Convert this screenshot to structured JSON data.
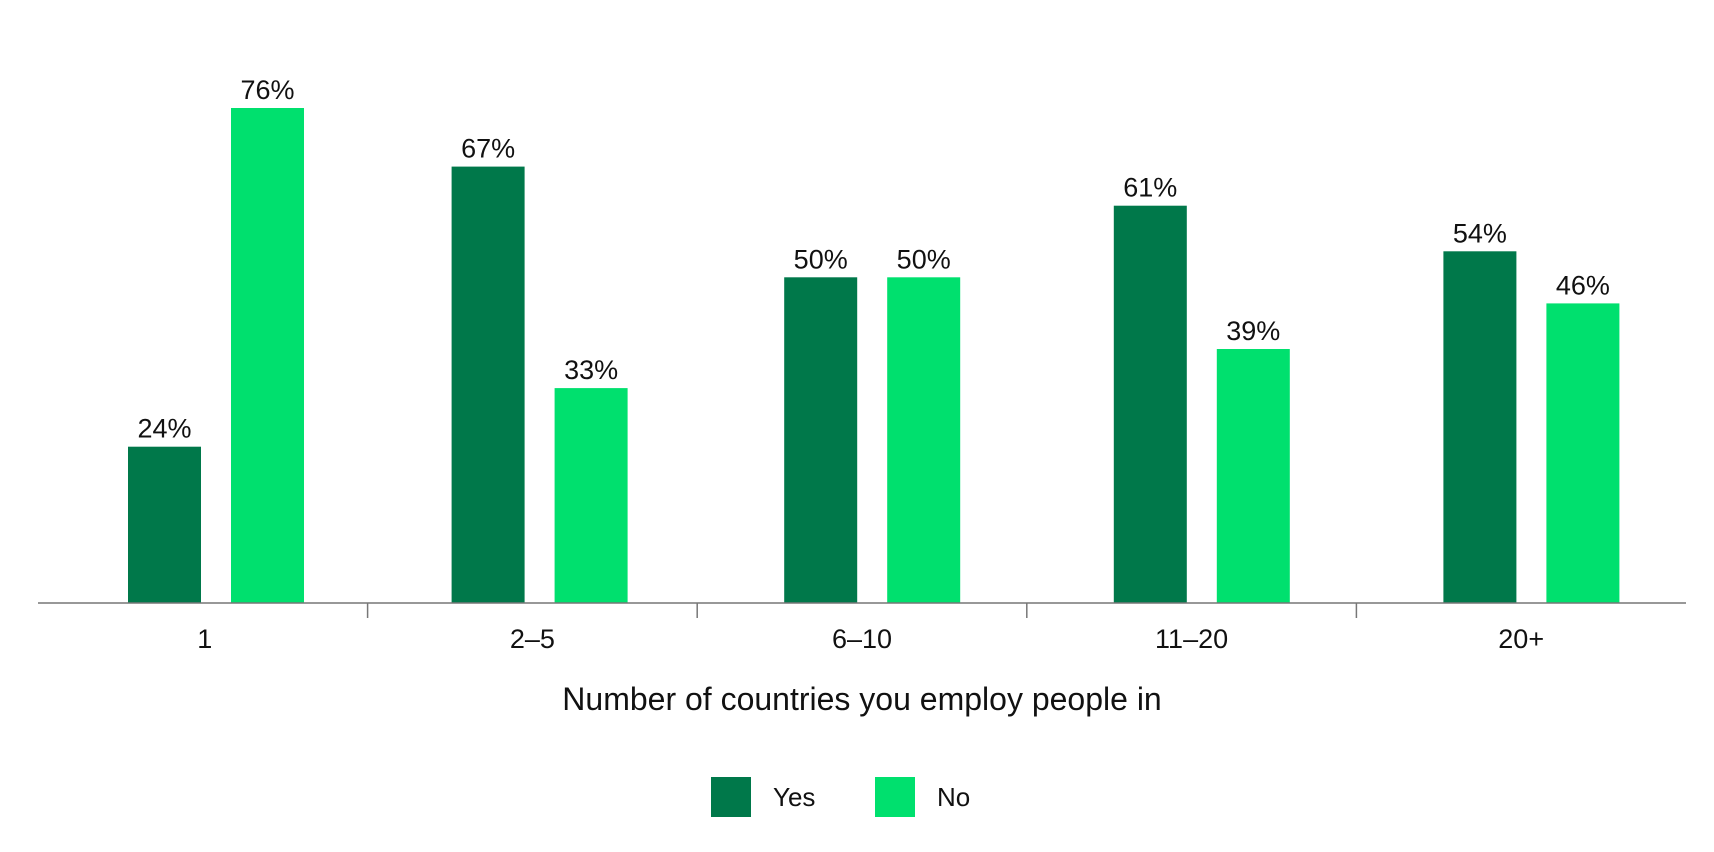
{
  "chart_data": {
    "type": "bar",
    "title": "",
    "xlabel": "Number of countries you employ people in",
    "ylabel": "",
    "categories": [
      "1",
      "2–5",
      "6–10",
      "11–20",
      "20+"
    ],
    "series": [
      {
        "name": "Yes",
        "color": "#00784A",
        "values": [
          24,
          67,
          50,
          61,
          54
        ],
        "labels": [
          "24%",
          "67%",
          "50%",
          "61%",
          "54%"
        ]
      },
      {
        "name": "No",
        "color": "#00E06E",
        "values": [
          76,
          33,
          50,
          39,
          46
        ],
        "labels": [
          "76%",
          "33%",
          "50%",
          "39%",
          "46%"
        ]
      }
    ],
    "ylim": [
      0,
      100
    ],
    "grid": false,
    "legend_position": "bottom-center",
    "axis_color": "#777777"
  }
}
